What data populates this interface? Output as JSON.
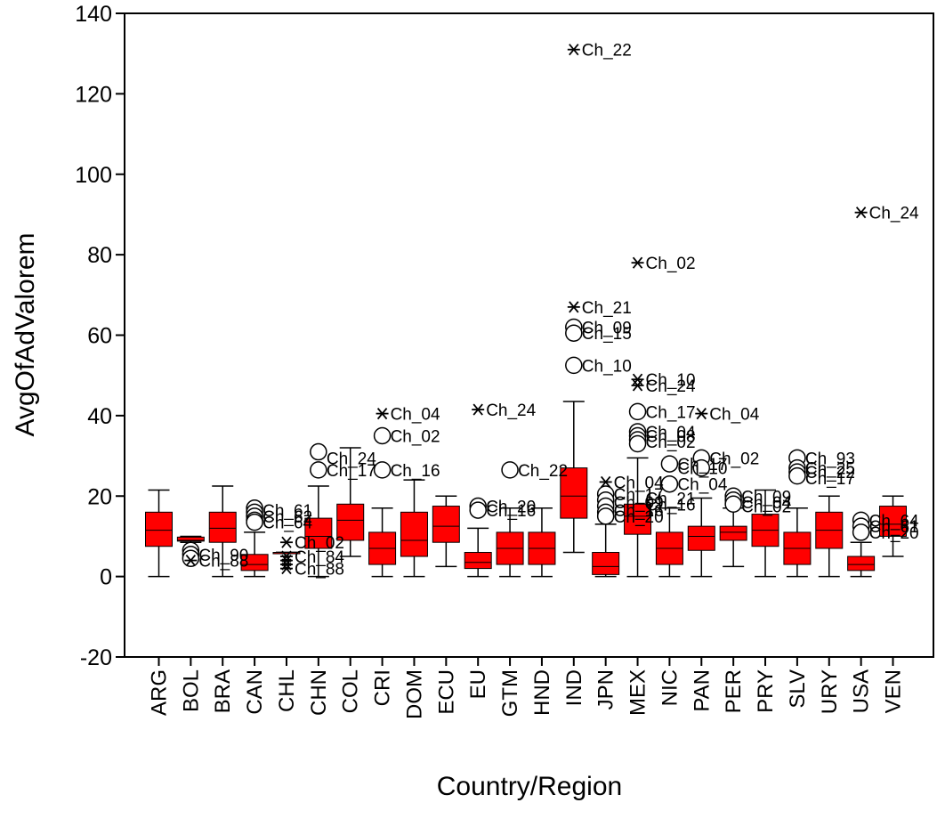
{
  "chart_data": {
    "type": "boxplot",
    "title": "",
    "xlabel": "Country/Region",
    "ylabel": "AvgOfAdValorem",
    "ylim": [
      -20,
      140
    ],
    "yticks": [
      -20,
      0,
      20,
      40,
      60,
      80,
      100,
      120,
      140
    ],
    "grid": false,
    "box_color": "#ff0000",
    "categories": [
      "ARG",
      "BOL",
      "BRA",
      "CAN",
      "CHL",
      "CHN",
      "COL",
      "CRI",
      "DOM",
      "ECU",
      "EU",
      "GTM",
      "HND",
      "IND",
      "JPN",
      "MEX",
      "NIC",
      "PAN",
      "PER",
      "PRY",
      "SLV",
      "URY",
      "USA",
      "VEN"
    ],
    "boxes": [
      {
        "cat": "ARG",
        "whislo": 0,
        "q1": 7.5,
        "med": 11.5,
        "q3": 16,
        "whishi": 21.5
      },
      {
        "cat": "BOL",
        "whislo": 8.5,
        "q1": 8.8,
        "med": 9,
        "q3": 9.8,
        "whishi": 10
      },
      {
        "cat": "BRA",
        "whislo": 0,
        "q1": 8.5,
        "med": 12,
        "q3": 16,
        "whishi": 22.5
      },
      {
        "cat": "CAN",
        "whislo": 0,
        "q1": 1.5,
        "med": 3,
        "q3": 5.5,
        "whishi": 11
      },
      {
        "cat": "CHL",
        "whislo": 6,
        "q1": 6,
        "med": 6,
        "q3": 6,
        "whishi": 6
      },
      {
        "cat": "CHN",
        "whislo": 0,
        "q1": 7,
        "med": 10,
        "q3": 14.5,
        "whishi": 22.5
      },
      {
        "cat": "COL",
        "whislo": 5,
        "q1": 9,
        "med": 14,
        "q3": 18,
        "whishi": 32
      },
      {
        "cat": "CRI",
        "whislo": 0,
        "q1": 3,
        "med": 7,
        "q3": 11,
        "whishi": 17
      },
      {
        "cat": "DOM",
        "whislo": 0,
        "q1": 5,
        "med": 9,
        "q3": 16,
        "whishi": 24
      },
      {
        "cat": "ECU",
        "whislo": 2.5,
        "q1": 8.5,
        "med": 12.5,
        "q3": 17.5,
        "whishi": 20
      },
      {
        "cat": "EU",
        "whislo": 0,
        "q1": 2,
        "med": 3.5,
        "q3": 6,
        "whishi": 12
      },
      {
        "cat": "GTM",
        "whislo": 0,
        "q1": 3,
        "med": 7,
        "q3": 11,
        "whishi": 17
      },
      {
        "cat": "HND",
        "whislo": 0,
        "q1": 3,
        "med": 7,
        "q3": 11,
        "whishi": 17
      },
      {
        "cat": "IND",
        "whislo": 6,
        "q1": 14.5,
        "med": 20,
        "q3": 27,
        "whishi": 43.5
      },
      {
        "cat": "JPN",
        "whislo": 0,
        "q1": 0.5,
        "med": 2.5,
        "q3": 6,
        "whishi": 13
      },
      {
        "cat": "MEX",
        "whislo": 0,
        "q1": 10.5,
        "med": 15,
        "q3": 18,
        "whishi": 29.5
      },
      {
        "cat": "NIC",
        "whislo": 0,
        "q1": 3,
        "med": 7,
        "q3": 11,
        "whishi": 17
      },
      {
        "cat": "PAN",
        "whislo": 0,
        "q1": 6.5,
        "med": 10,
        "q3": 12.5,
        "whishi": 19.5
      },
      {
        "cat": "PER",
        "whislo": 2.5,
        "q1": 9,
        "med": 11,
        "q3": 12.5,
        "whishi": 17
      },
      {
        "cat": "PRY",
        "whislo": 0,
        "q1": 7.5,
        "med": 11.5,
        "q3": 15.5,
        "whishi": 21.5
      },
      {
        "cat": "SLV",
        "whislo": 0,
        "q1": 3,
        "med": 7,
        "q3": 11,
        "whishi": 17
      },
      {
        "cat": "URY",
        "whislo": 0,
        "q1": 7,
        "med": 11.5,
        "q3": 16,
        "whishi": 20
      },
      {
        "cat": "USA",
        "whislo": 0,
        "q1": 1.5,
        "med": 3,
        "q3": 5,
        "whishi": 8.5
      },
      {
        "cat": "VEN",
        "whislo": 5,
        "q1": 10,
        "med": 13,
        "q3": 17.5,
        "whishi": 20
      }
    ],
    "outliers": [
      {
        "cat": "BOL",
        "y": 6.5,
        "marker": "circle"
      },
      {
        "cat": "BOL",
        "y": 5.5,
        "marker": "circle"
      },
      {
        "cat": "BOL",
        "y": 4.5,
        "marker": "circle"
      },
      {
        "cat": "BOL",
        "y": 4,
        "marker": "star"
      },
      {
        "cat": "CAN",
        "y": 17,
        "marker": "circle"
      },
      {
        "cat": "CAN",
        "y": 16,
        "marker": "circle"
      },
      {
        "cat": "CAN",
        "y": 15,
        "marker": "circle"
      },
      {
        "cat": "CAN",
        "y": 14,
        "marker": "circle"
      },
      {
        "cat": "CAN",
        "y": 13.5,
        "marker": "circle"
      },
      {
        "cat": "CHL",
        "y": 8.5,
        "marker": "star"
      },
      {
        "cat": "CHL",
        "y": 5,
        "marker": "star"
      },
      {
        "cat": "CHL",
        "y": 4,
        "marker": "star"
      },
      {
        "cat": "CHL",
        "y": 3,
        "marker": "star"
      },
      {
        "cat": "CHL",
        "y": 2,
        "marker": "star"
      },
      {
        "cat": "CHN",
        "y": 31,
        "marker": "circle"
      },
      {
        "cat": "CHN",
        "y": 26.5,
        "marker": "circle"
      },
      {
        "cat": "CRI",
        "y": 40.5,
        "marker": "star"
      },
      {
        "cat": "CRI",
        "y": 35,
        "marker": "circle"
      },
      {
        "cat": "CRI",
        "y": 26.5,
        "marker": "circle"
      },
      {
        "cat": "EU",
        "y": 41.5,
        "marker": "star"
      },
      {
        "cat": "EU",
        "y": 17.5,
        "marker": "circle"
      },
      {
        "cat": "EU",
        "y": 16.5,
        "marker": "circle"
      },
      {
        "cat": "GTM",
        "y": 26.5,
        "marker": "circle"
      },
      {
        "cat": "IND",
        "y": 131,
        "marker": "star"
      },
      {
        "cat": "IND",
        "y": 67,
        "marker": "star"
      },
      {
        "cat": "IND",
        "y": 62,
        "marker": "circle"
      },
      {
        "cat": "IND",
        "y": 60.5,
        "marker": "circle"
      },
      {
        "cat": "IND",
        "y": 52.5,
        "marker": "circle"
      },
      {
        "cat": "JPN",
        "y": 23.5,
        "marker": "star"
      },
      {
        "cat": "JPN",
        "y": 20.5,
        "marker": "circle"
      },
      {
        "cat": "JPN",
        "y": 19,
        "marker": "circle"
      },
      {
        "cat": "JPN",
        "y": 17.5,
        "marker": "circle"
      },
      {
        "cat": "JPN",
        "y": 16,
        "marker": "circle"
      },
      {
        "cat": "JPN",
        "y": 15,
        "marker": "circle"
      },
      {
        "cat": "MEX",
        "y": 78,
        "marker": "star"
      },
      {
        "cat": "MEX",
        "y": 49,
        "marker": "star"
      },
      {
        "cat": "MEX",
        "y": 47.5,
        "marker": "star"
      },
      {
        "cat": "MEX",
        "y": 41,
        "marker": "circle"
      },
      {
        "cat": "MEX",
        "y": 36,
        "marker": "circle"
      },
      {
        "cat": "MEX",
        "y": 35,
        "marker": "circle"
      },
      {
        "cat": "MEX",
        "y": 34,
        "marker": "circle"
      },
      {
        "cat": "MEX",
        "y": 33,
        "marker": "circle"
      },
      {
        "cat": "NIC",
        "y": 28,
        "marker": "circle"
      },
      {
        "cat": "NIC",
        "y": 23,
        "marker": "circle"
      },
      {
        "cat": "PAN",
        "y": 40.5,
        "marker": "star"
      },
      {
        "cat": "PAN",
        "y": 29.5,
        "marker": "circle"
      },
      {
        "cat": "PAN",
        "y": 27,
        "marker": "circle"
      },
      {
        "cat": "PER",
        "y": 20,
        "marker": "circle"
      },
      {
        "cat": "PER",
        "y": 19,
        "marker": "circle"
      },
      {
        "cat": "PER",
        "y": 18,
        "marker": "circle"
      },
      {
        "cat": "SLV",
        "y": 29.5,
        "marker": "circle"
      },
      {
        "cat": "SLV",
        "y": 27,
        "marker": "circle"
      },
      {
        "cat": "SLV",
        "y": 26,
        "marker": "circle"
      },
      {
        "cat": "SLV",
        "y": 25,
        "marker": "circle"
      },
      {
        "cat": "USA",
        "y": 90.5,
        "marker": "star"
      },
      {
        "cat": "USA",
        "y": 14,
        "marker": "circle"
      },
      {
        "cat": "USA",
        "y": 12.5,
        "marker": "circle"
      },
      {
        "cat": "USA",
        "y": 11,
        "marker": "circle"
      }
    ],
    "annotations": [
      {
        "cat": "BOL",
        "y": 5.5,
        "text": "Ch_90"
      },
      {
        "cat": "BOL",
        "y": 4,
        "text": "Ch_88"
      },
      {
        "cat": "CAN",
        "y": 16.5,
        "text": "Ch_61"
      },
      {
        "cat": "CAN",
        "y": 15,
        "text": "Ch_62"
      },
      {
        "cat": "CAN",
        "y": 13.5,
        "text": "Ch_64"
      },
      {
        "cat": "CHL",
        "y": 8.5,
        "text": "Ch_02"
      },
      {
        "cat": "CHL",
        "y": 5,
        "text": "Ch_84"
      },
      {
        "cat": "CHL",
        "y": 2,
        "text": "Ch_88"
      },
      {
        "cat": "CHN",
        "y": 29.5,
        "text": "Ch_24"
      },
      {
        "cat": "CHN",
        "y": 26.5,
        "text": "Ch_17"
      },
      {
        "cat": "CRI",
        "y": 40.5,
        "text": "Ch_04"
      },
      {
        "cat": "CRI",
        "y": 35,
        "text": "Ch_02"
      },
      {
        "cat": "CRI",
        "y": 26.5,
        "text": "Ch_16"
      },
      {
        "cat": "EU",
        "y": 41.5,
        "text": "Ch_24"
      },
      {
        "cat": "EU",
        "y": 17.5,
        "text": "Ch_20"
      },
      {
        "cat": "EU",
        "y": 16.5,
        "text": "Ch_16"
      },
      {
        "cat": "GTM",
        "y": 26.5,
        "text": "Ch_22"
      },
      {
        "cat": "IND",
        "y": 131,
        "text": "Ch_22"
      },
      {
        "cat": "IND",
        "y": 67,
        "text": "Ch_21"
      },
      {
        "cat": "IND",
        "y": 62,
        "text": "Ch_09"
      },
      {
        "cat": "IND",
        "y": 60.5,
        "text": "Ch_15"
      },
      {
        "cat": "IND",
        "y": 52.5,
        "text": "Ch_10"
      },
      {
        "cat": "JPN",
        "y": 23.5,
        "text": "Ch_04"
      },
      {
        "cat": "JPN",
        "y": 20.5,
        "text": "Ch_17"
      },
      {
        "cat": "JPN",
        "y": 18.5,
        "text": "Ch_09"
      },
      {
        "cat": "JPN",
        "y": 16.5,
        "text": "Ch_16"
      },
      {
        "cat": "JPN",
        "y": 15,
        "text": "Ch_20"
      },
      {
        "cat": "MEX",
        "y": 78,
        "text": "Ch_02"
      },
      {
        "cat": "MEX",
        "y": 49,
        "text": "Ch_10"
      },
      {
        "cat": "MEX",
        "y": 47.5,
        "text": "Ch_24"
      },
      {
        "cat": "MEX",
        "y": 41,
        "text": "Ch_17"
      },
      {
        "cat": "MEX",
        "y": 36,
        "text": "Ch_04"
      },
      {
        "cat": "MEX",
        "y": 35,
        "text": "Ch_08"
      },
      {
        "cat": "MEX",
        "y": 33.5,
        "text": "Ch_02"
      },
      {
        "cat": "MEX",
        "y": 19.5,
        "text": "Ch_21"
      },
      {
        "cat": "MEX",
        "y": 18,
        "text": "Ch_16"
      },
      {
        "cat": "NIC",
        "y": 28,
        "text": "Ch_17"
      },
      {
        "cat": "NIC",
        "y": 27,
        "text": "Ch_10"
      },
      {
        "cat": "NIC",
        "y": 23,
        "text": "Ch_04"
      },
      {
        "cat": "PAN",
        "y": 40.5,
        "text": "Ch_04"
      },
      {
        "cat": "PAN",
        "y": 29.5,
        "text": "Ch_02"
      },
      {
        "cat": "PER",
        "y": 20,
        "text": "Ch_09"
      },
      {
        "cat": "PER",
        "y": 18.5,
        "text": "Ch_04"
      },
      {
        "cat": "PER",
        "y": 17.5,
        "text": "Ch_02"
      },
      {
        "cat": "SLV",
        "y": 29.5,
        "text": "Ch_93"
      },
      {
        "cat": "SLV",
        "y": 27,
        "text": "Ch_25"
      },
      {
        "cat": "SLV",
        "y": 26,
        "text": "Ch_22"
      },
      {
        "cat": "SLV",
        "y": 24.5,
        "text": "Ch_17"
      },
      {
        "cat": "USA",
        "y": 90.5,
        "text": "Ch_24"
      },
      {
        "cat": "USA",
        "y": 14,
        "text": "Ch_64"
      },
      {
        "cat": "USA",
        "y": 12.5,
        "text": "Ch_61"
      },
      {
        "cat": "USA",
        "y": 11,
        "text": "Ch_20"
      }
    ]
  }
}
